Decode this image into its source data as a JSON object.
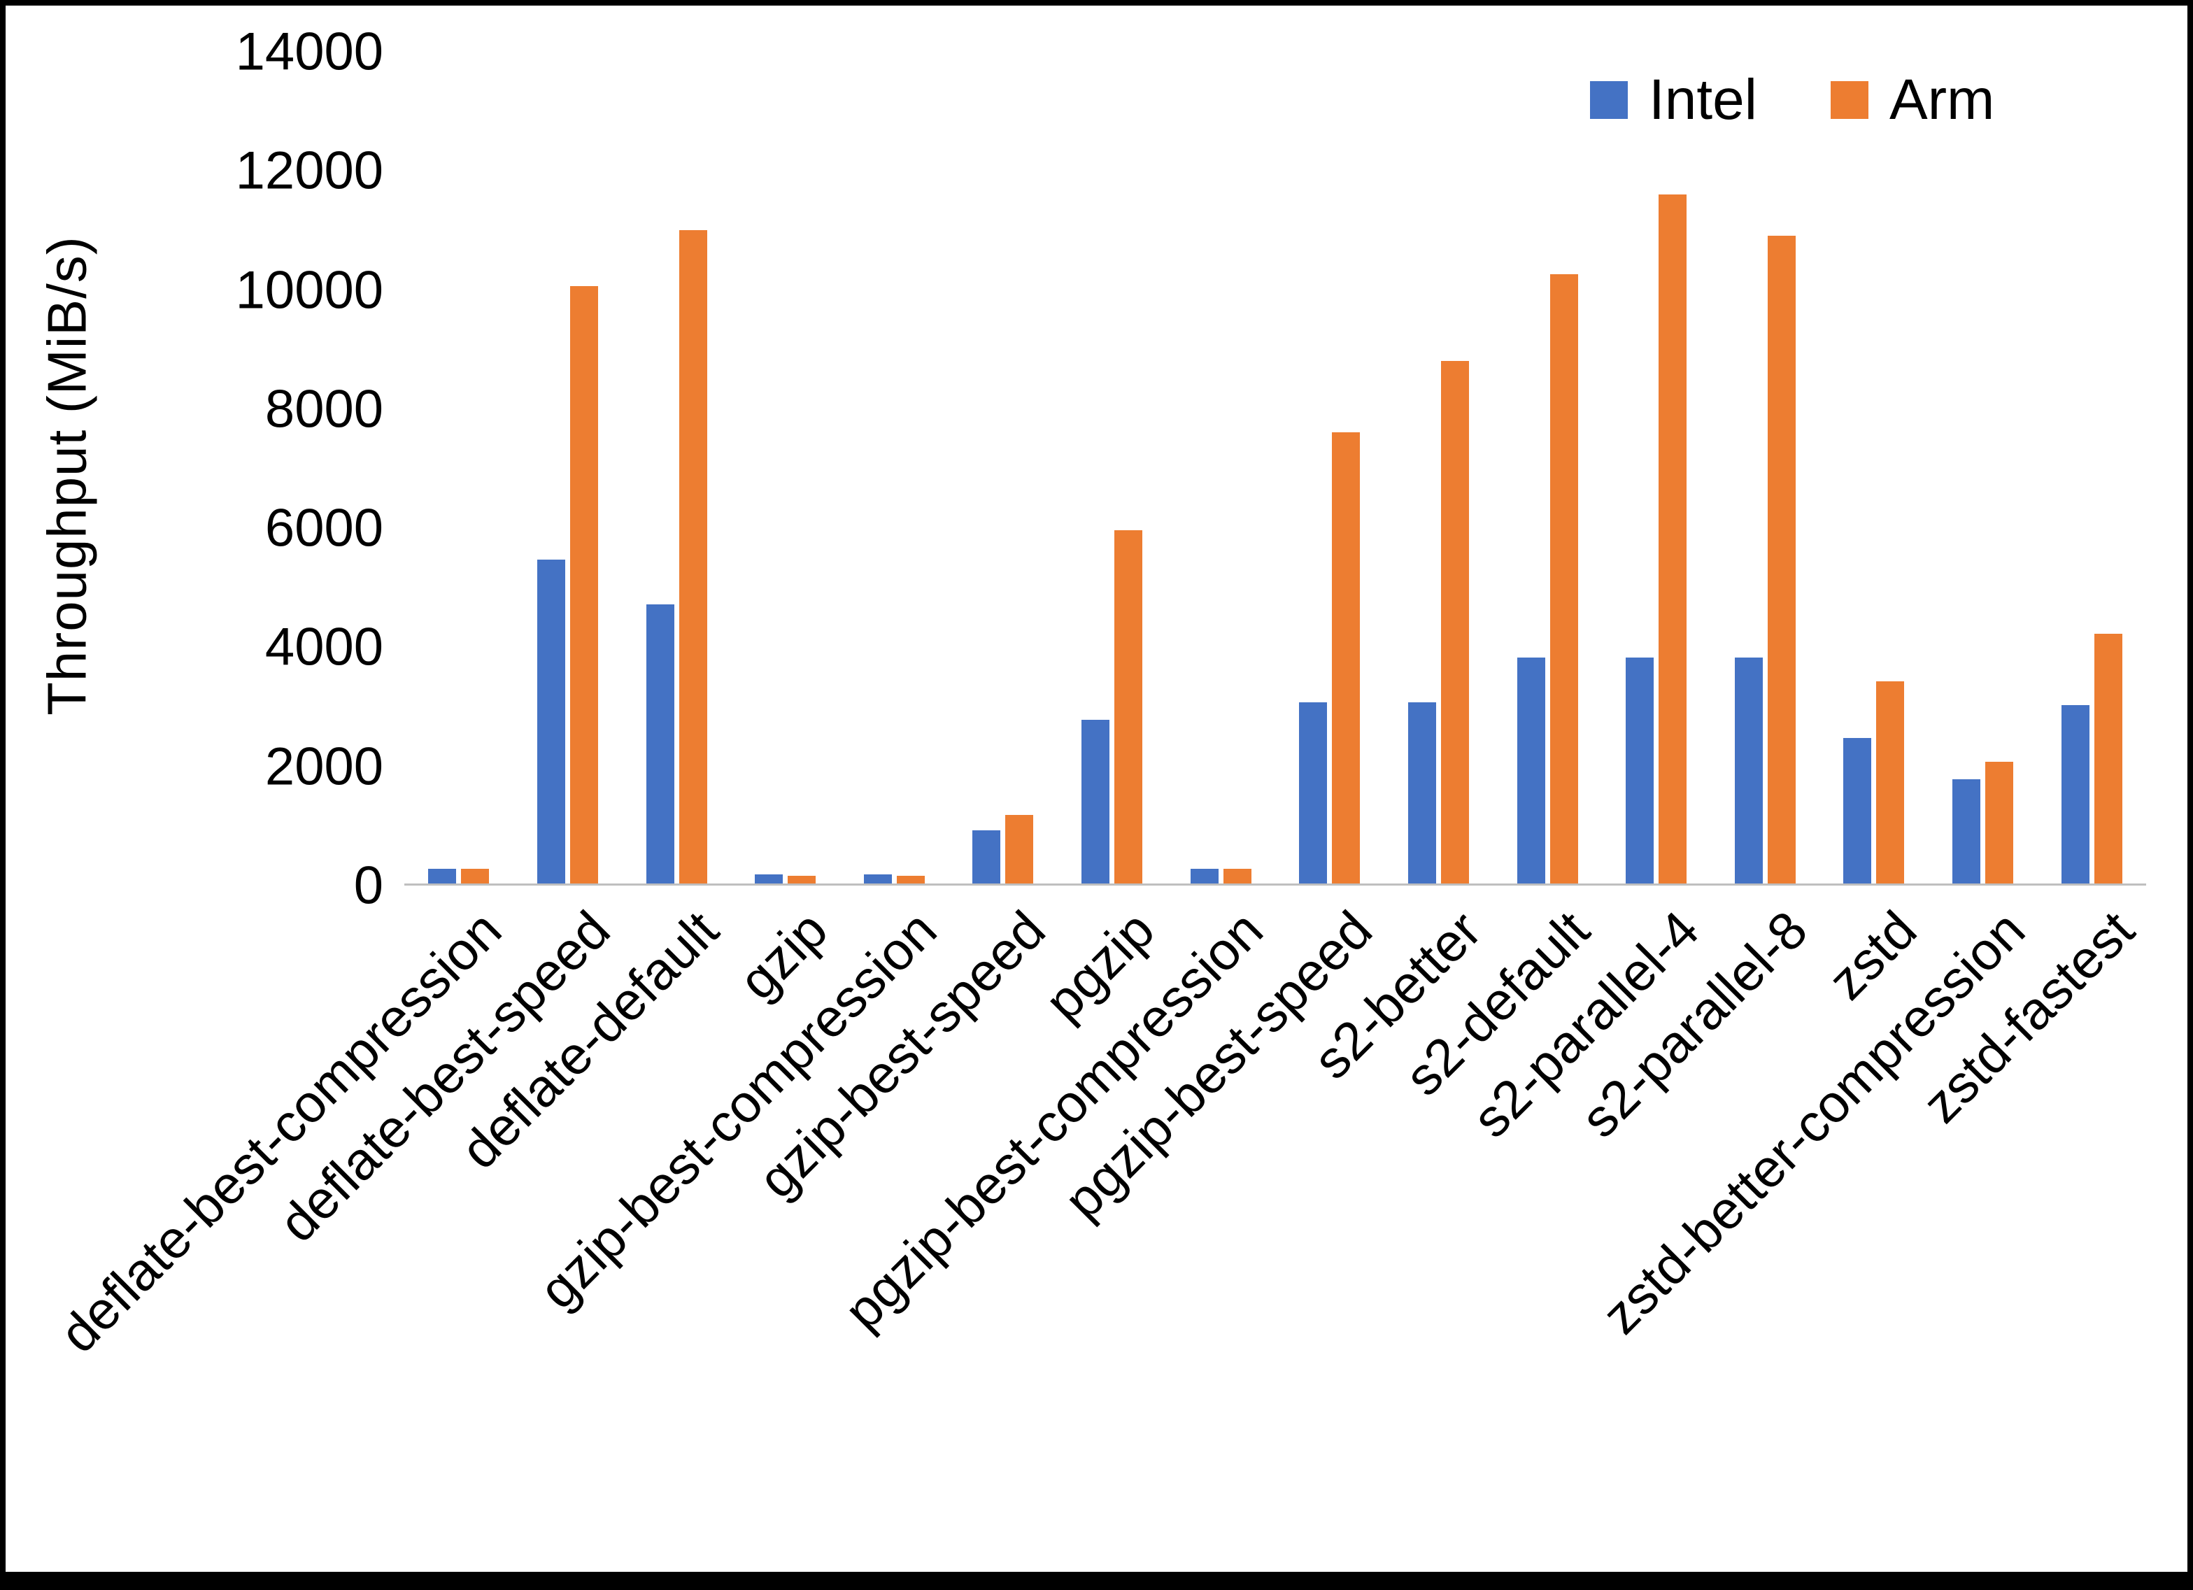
{
  "page": {
    "background": "#ffffff",
    "frame_border_color": "#000000",
    "axis_line_color": "#bfbfbf",
    "text_color": "#000000"
  },
  "chart_data": {
    "type": "bar",
    "title": "",
    "xlabel": "",
    "ylabel": "Throughput (MiB/s)",
    "ylim": [
      0,
      14000
    ],
    "yticks": [
      0,
      2000,
      4000,
      6000,
      8000,
      10000,
      12000,
      14000
    ],
    "grid": false,
    "legend_position": "top-right",
    "categories": [
      "deflate-best-compression",
      "deflate-best-speed",
      "deflate-default",
      "gzip",
      "gzip-best-compression",
      "gzip-best-speed",
      "pgzip",
      "pgzip-best-compression",
      "pgzip-best-speed",
      "s2-better",
      "s2-default",
      "s2-parallel-4",
      "s2-parallel-8",
      "zstd",
      "zstd-better-compression",
      "zstd-fastest"
    ],
    "series": [
      {
        "name": "Intel",
        "color": "#4472C4",
        "values": [
          250,
          5450,
          4700,
          150,
          150,
          900,
          2750,
          250,
          3050,
          3050,
          3800,
          3800,
          3800,
          2450,
          1750,
          3000
        ]
      },
      {
        "name": "Arm",
        "color": "#ED7D31",
        "values": [
          250,
          10050,
          11000,
          130,
          130,
          1150,
          5950,
          250,
          7600,
          8800,
          10250,
          11600,
          10900,
          3400,
          2050,
          4200
        ]
      }
    ]
  }
}
